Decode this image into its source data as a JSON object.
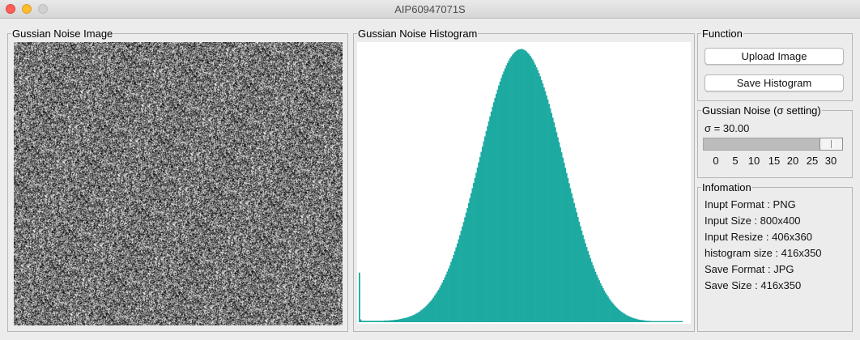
{
  "window": {
    "title": "AIP60947071S"
  },
  "image_panel": {
    "title": "Gussian Noise Image"
  },
  "histogram_panel": {
    "title": "Gussian Noise Histogram"
  },
  "function_panel": {
    "title": "Function",
    "upload_label": "Upload Image",
    "save_label": "Save Histogram"
  },
  "noise_panel": {
    "title": "Gussian Noise (σ setting)",
    "sigma_text": "σ = 30.00",
    "sigma_value": 30,
    "slider_min": 0,
    "slider_max": 30,
    "ticks": [
      "0",
      "5",
      "10",
      "15",
      "20",
      "25",
      "30"
    ]
  },
  "info_panel": {
    "title": "Infomation",
    "lines": [
      "Inupt Format : PNG",
      "Input Size : 800x400",
      "Input Resize : 406x360",
      "histogram size : 416x350",
      "Save Format : JPG",
      "Save Size : 416x350"
    ]
  },
  "colors": {
    "histogram_bar": "#1daaa1",
    "noise_mean_gray": "#787878"
  },
  "chart_data": {
    "type": "bar",
    "title": "",
    "xlabel": "",
    "ylabel": "",
    "x_range": [
      0,
      255
    ],
    "y_range": [
      0,
      1
    ],
    "note_values": "normalized bin heights (relative to max)",
    "values": [
      0.18,
      0.01,
      0.005,
      0.005,
      0.005,
      0.005,
      0.005,
      0.005,
      0.005,
      0.005,
      0.005,
      0.005,
      0.005,
      0.005,
      0.005,
      0.005,
      0.005,
      0.005,
      0.005,
      0.005,
      0.006,
      0.006,
      0.006,
      0.006,
      0.007,
      0.007,
      0.007,
      0.008,
      0.008,
      0.009,
      0.009,
      0.01,
      0.011,
      0.012,
      0.013,
      0.014,
      0.015,
      0.016,
      0.017,
      0.019,
      0.021,
      0.022,
      0.024,
      0.026,
      0.028,
      0.031,
      0.033,
      0.036,
      0.039,
      0.043,
      0.046,
      0.05,
      0.054,
      0.058,
      0.063,
      0.068,
      0.073,
      0.078,
      0.084,
      0.09,
      0.097,
      0.104,
      0.111,
      0.118,
      0.126,
      0.135,
      0.144,
      0.153,
      0.163,
      0.173,
      0.184,
      0.195,
      0.206,
      0.219,
      0.231,
      0.244,
      0.258,
      0.272,
      0.286,
      0.301,
      0.316,
      0.332,
      0.348,
      0.364,
      0.381,
      0.398,
      0.415,
      0.433,
      0.451,
      0.469,
      0.487,
      0.506,
      0.524,
      0.543,
      0.562,
      0.581,
      0.6,
      0.619,
      0.638,
      0.657,
      0.675,
      0.694,
      0.712,
      0.73,
      0.748,
      0.765,
      0.782,
      0.799,
      0.815,
      0.83,
      0.845,
      0.86,
      0.874,
      0.887,
      0.9,
      0.911,
      0.922,
      0.933,
      0.942,
      0.951,
      0.959,
      0.966,
      0.972,
      0.978,
      0.982,
      0.986,
      0.989,
      0.991,
      0.992,
      0.993,
      0.992,
      0.99,
      0.987,
      0.984,
      0.979,
      0.974,
      0.968,
      0.961,
      0.954,
      0.945,
      0.936,
      0.926,
      0.916,
      0.905,
      0.893,
      0.88,
      0.867,
      0.853,
      0.839,
      0.824,
      0.809,
      0.793,
      0.777,
      0.76,
      0.743,
      0.726,
      0.708,
      0.69,
      0.672,
      0.654,
      0.635,
      0.617,
      0.598,
      0.58,
      0.561,
      0.542,
      0.524,
      0.505,
      0.487,
      0.469,
      0.451,
      0.433,
      0.416,
      0.399,
      0.382,
      0.365,
      0.349,
      0.333,
      0.317,
      0.302,
      0.287,
      0.273,
      0.259,
      0.245,
      0.232,
      0.219,
      0.207,
      0.195,
      0.183,
      0.172,
      0.162,
      0.152,
      0.142,
      0.133,
      0.124,
      0.115,
      0.107,
      0.1,
      0.093,
      0.086,
      0.079,
      0.073,
      0.068,
      0.062,
      0.057,
      0.053,
      0.048,
      0.044,
      0.04,
      0.037,
      0.034,
      0.031,
      0.028,
      0.025,
      0.023,
      0.021,
      0.019,
      0.017,
      0.015,
      0.014,
      0.013,
      0.011,
      0.01,
      0.009,
      0.008,
      0.008,
      0.007,
      0.006,
      0.006,
      0.005,
      0.005,
      0.005,
      0.004,
      0.004,
      0.004,
      0.004,
      0.004,
      0.004,
      0.004,
      0.004,
      0.004,
      0.004,
      0.004,
      0.004,
      0.004,
      0.004,
      0.004,
      0.004,
      0.004,
      0.004,
      0.004,
      0.004,
      0.004,
      0.004,
      0.004,
      0.004,
      0.004,
      0.004
    ]
  }
}
